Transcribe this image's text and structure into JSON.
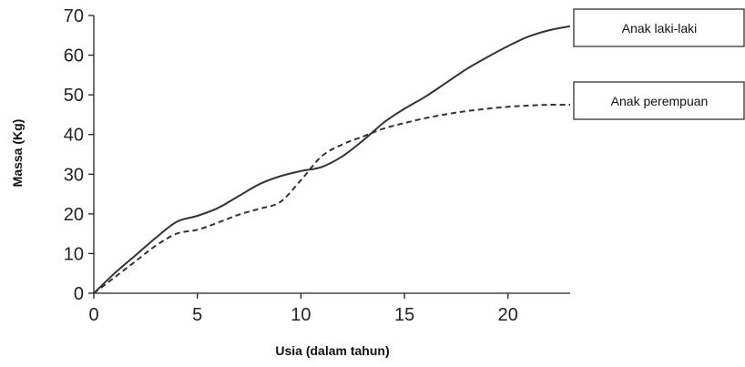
{
  "chart_data": {
    "type": "line",
    "xlabel": "Usia (dalam tahun)",
    "ylabel": "Massa (Kg)",
    "xlim": [
      0,
      23
    ],
    "ylim": [
      0,
      70
    ],
    "xticks": [
      0,
      5,
      10,
      15,
      20
    ],
    "yticks": [
      0,
      10,
      20,
      30,
      40,
      50,
      60,
      70
    ],
    "legend_position": "right",
    "series": [
      {
        "name": "Anak laki-laki",
        "style": "solid",
        "color": "#333333",
        "x": [
          0,
          1,
          2,
          3,
          4,
          5,
          6,
          7,
          8,
          9,
          10,
          11,
          12,
          13,
          14,
          15,
          16,
          17,
          18,
          19,
          20,
          21,
          22,
          23
        ],
        "y": [
          0,
          5,
          9.5,
          14,
          18,
          19.5,
          21.5,
          24.5,
          27.5,
          29.5,
          30.8,
          31.8,
          34.5,
          38.5,
          43,
          46.5,
          49.5,
          53,
          56.5,
          59.5,
          62.3,
          64.7,
          66.3,
          67.3
        ]
      },
      {
        "name": "Anak perempuan",
        "style": "dashed",
        "color": "#333333",
        "x": [
          0,
          1,
          2,
          3,
          4,
          5,
          6,
          7,
          8,
          9,
          10,
          11,
          12,
          13,
          14,
          15,
          16,
          17,
          18,
          19,
          20,
          21,
          22,
          23
        ],
        "y": [
          0,
          4,
          8,
          12,
          15,
          16,
          17.8,
          19.8,
          21.3,
          23,
          28.5,
          34.5,
          37.5,
          39.5,
          41.5,
          42.9,
          44.1,
          45.1,
          45.9,
          46.5,
          47,
          47.3,
          47.5,
          47.5
        ]
      }
    ]
  }
}
